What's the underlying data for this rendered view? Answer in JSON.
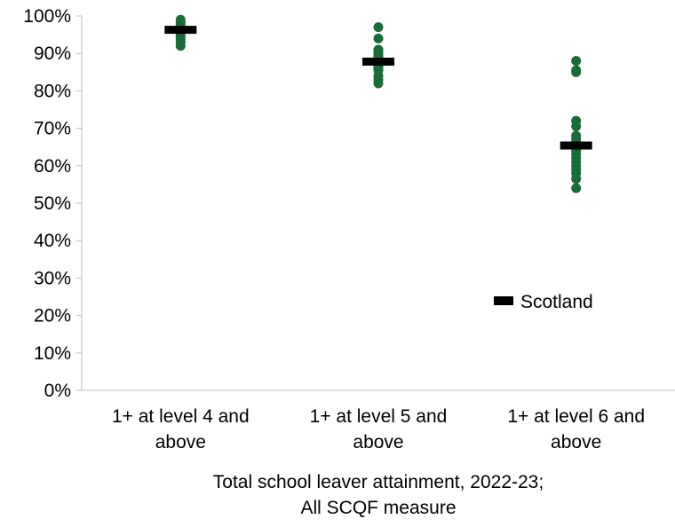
{
  "chart_data": {
    "type": "scatter",
    "title": "",
    "xlabel": [
      "Total school leaver attainment, 2022-23;",
      "All SCQF measure"
    ],
    "ylabel": "",
    "ylim": [
      0,
      100
    ],
    "yticks": [
      "0%",
      "10%",
      "20%",
      "30%",
      "40%",
      "50%",
      "60%",
      "70%",
      "80%",
      "90%",
      "100%"
    ],
    "categories": [
      [
        "1+ at level 4 and",
        "above"
      ],
      [
        "1+ at level 5 and",
        "above"
      ],
      [
        "1+ at level 6 and",
        "above"
      ]
    ],
    "series": [
      {
        "type": "scatter",
        "color": "#1a6b3a",
        "values": [
          [
            99.0,
            98.5,
            98.0,
            97.5,
            97.0,
            96.8,
            96.5,
            96.2,
            96.0,
            95.8,
            95.5,
            95.0,
            94.5,
            94.0,
            93.5,
            93.0,
            92.0
          ],
          [
            97.0,
            94.0,
            91.0,
            90.5,
            90.0,
            89.5,
            89.0,
            88.5,
            88.0,
            87.5,
            87.0,
            86.5,
            86.0,
            85.5,
            84.0,
            83.0,
            82.0
          ],
          [
            88.0,
            85.5,
            85.0,
            72.0,
            70.5,
            68.0,
            67.0,
            66.0,
            65.5,
            64.0,
            63.0,
            62.0,
            61.0,
            60.0,
            59.0,
            58.0,
            56.5,
            54.0
          ]
        ]
      },
      {
        "name": "Scotland",
        "type": "marker",
        "color": "#000000",
        "values": [
          96.3,
          87.8,
          65.4
        ]
      }
    ],
    "legend": {
      "position": "inside-bottom-right"
    },
    "grid": false
  }
}
